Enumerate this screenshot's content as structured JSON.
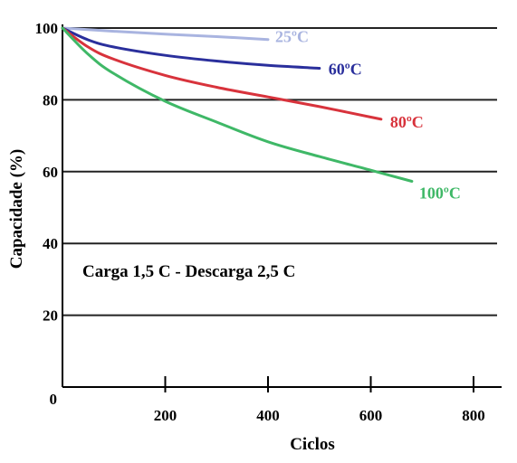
{
  "chart_data": {
    "type": "line",
    "title": "",
    "xlabel": "Ciclos",
    "ylabel": "Capacidade (%)",
    "annotation": "Carga 1,5 C - Descarga 2,5 C",
    "origin_label": "0",
    "xlim": [
      0,
      800
    ],
    "ylim": [
      0,
      100
    ],
    "x_ticks": [
      "200",
      "400",
      "600",
      "800"
    ],
    "x_tick_values": [
      200,
      400,
      600,
      800
    ],
    "y_ticks": [
      "20",
      "40",
      "60",
      "80",
      "100"
    ],
    "y_tick_values": [
      20,
      40,
      60,
      80,
      100
    ],
    "grid": "horizontal",
    "series": [
      {
        "name": "25ºC",
        "color": "#a9b4e0",
        "x": [
          0,
          100,
          200,
          300,
          400
        ],
        "y": [
          100,
          99.1,
          98.3,
          97.6,
          96.8
        ]
      },
      {
        "name": "60ºC",
        "color": "#2a2f9c",
        "x": [
          0,
          50,
          100,
          200,
          300,
          400,
          500
        ],
        "y": [
          100,
          96.7,
          94.7,
          92.4,
          90.8,
          89.6,
          88.8
        ]
      },
      {
        "name": "80ºC",
        "color": "#d8333c",
        "x": [
          0,
          50,
          100,
          200,
          300,
          400,
          500,
          600,
          620
        ],
        "y": [
          100,
          94.7,
          91.3,
          86.8,
          83.5,
          80.8,
          78.1,
          75.2,
          74.6
        ]
      },
      {
        "name": "100ºC",
        "color": "#3fb867",
        "x": [
          0,
          50,
          100,
          200,
          300,
          400,
          500,
          600,
          680
        ],
        "y": [
          100,
          92.7,
          87.3,
          79.6,
          73.8,
          68.3,
          64.2,
          60.4,
          57.3
        ]
      }
    ]
  }
}
